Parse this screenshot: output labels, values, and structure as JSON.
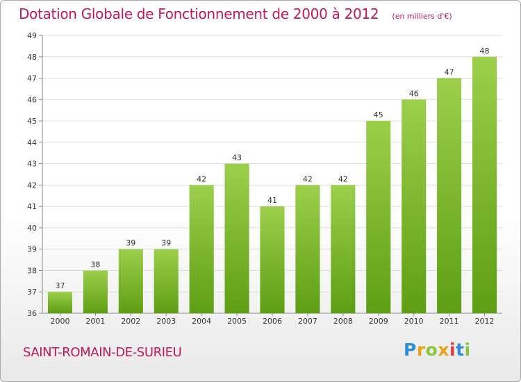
{
  "header": {
    "title": "Dotation Globale de Fonctionnement de 2000 à 2012",
    "subtitle": "(en milliers d'€)"
  },
  "footer": {
    "commune": "SAINT-ROMAIN-DE-SURIEU",
    "logo_text": "Proxiti",
    "logo_colors": [
      "#2e8bd6",
      "#e8a317",
      "#8cc63f",
      "#e8a317",
      "#e53935",
      "#2e8bd6",
      "#8cc63f"
    ]
  },
  "chart_data": {
    "type": "bar",
    "title": "Dotation Globale de Fonctionnement de 2000 à 2012",
    "subtitle": "(en milliers d'€)",
    "categories": [
      "2000",
      "2001",
      "2002",
      "2003",
      "2004",
      "2005",
      "2006",
      "2007",
      "2008",
      "2009",
      "2010",
      "2011",
      "2012"
    ],
    "values": [
      37,
      38,
      39,
      39,
      42,
      43,
      41,
      42,
      42,
      45,
      46,
      47,
      48
    ],
    "ylim": [
      36,
      49
    ],
    "yticks": [
      36,
      37,
      38,
      39,
      40,
      41,
      42,
      43,
      44,
      45,
      46,
      47,
      48,
      49
    ],
    "grid": true,
    "bar_color_top": "#9ccf4c",
    "bar_color_bottom": "#5e9e14",
    "grid_color": "#dddddd"
  }
}
